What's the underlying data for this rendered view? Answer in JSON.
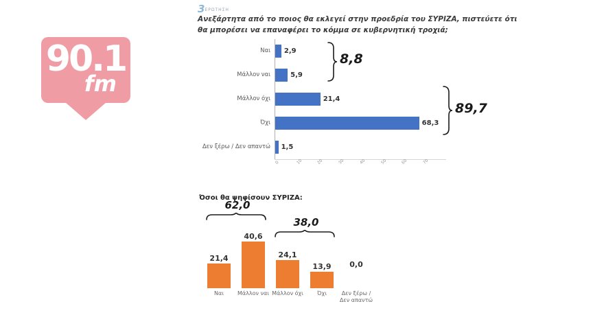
{
  "logo": {
    "station": "90.1",
    "band": "fm",
    "color": "#f09ca4"
  },
  "header": {
    "badge_number": "3",
    "badge_label": "ΕΡΩΤΗΣΗ",
    "question": "Ανεξάρτητα από το ποιος θα εκλεγεί στην προεδρία του ΣΥΡΙΖΑ, πιστεύετε ότι θα μπορέσει να επαναφέρει το κόμμα σε κυβερνητική τροχιά;"
  },
  "chart_data": [
    {
      "type": "bar",
      "orientation": "horizontal",
      "categories": [
        "Ναι",
        "Μάλλον ναι",
        "Μάλλον όχι",
        "Όχι",
        "Δεν ξέρω / Δεν απαντώ"
      ],
      "values": [
        2.9,
        5.9,
        21.4,
        68.3,
        1.5
      ],
      "value_labels": [
        "2,9",
        "5,9",
        "21,4",
        "68,3",
        "1,5"
      ],
      "bar_color": "#4472c4",
      "xlim": [
        0,
        80
      ],
      "x_ticks": [
        0,
        10,
        20,
        30,
        40,
        50,
        60,
        70
      ],
      "grid": false,
      "annotations": [
        {
          "label": "8,8",
          "span_categories": [
            "Ναι",
            "Μάλλον ναι"
          ]
        },
        {
          "label": "89,7",
          "span_categories": [
            "Μάλλον όχι",
            "Όχι"
          ]
        }
      ]
    },
    {
      "type": "bar",
      "orientation": "vertical",
      "title": "Όσοι θα ψηφίσουν ΣΥΡΙΖΑ:",
      "categories": [
        "Ναι",
        "Μάλλον ναι",
        "Μάλλον όχι",
        "Όχι",
        "Δεν ξέρω / Δεν απαντώ"
      ],
      "values": [
        21.4,
        40.6,
        24.1,
        13.9,
        0.0
      ],
      "value_labels": [
        "21,4",
        "40,6",
        "24,1",
        "13,9",
        "0,0"
      ],
      "bar_color": "#ed7d31",
      "grid": false,
      "annotations": [
        {
          "label": "62,0",
          "span_categories": [
            "Ναι",
            "Μάλλον ναι"
          ]
        },
        {
          "label": "38,0",
          "span_categories": [
            "Μάλλον όχι",
            "Όχι"
          ]
        }
      ]
    }
  ]
}
